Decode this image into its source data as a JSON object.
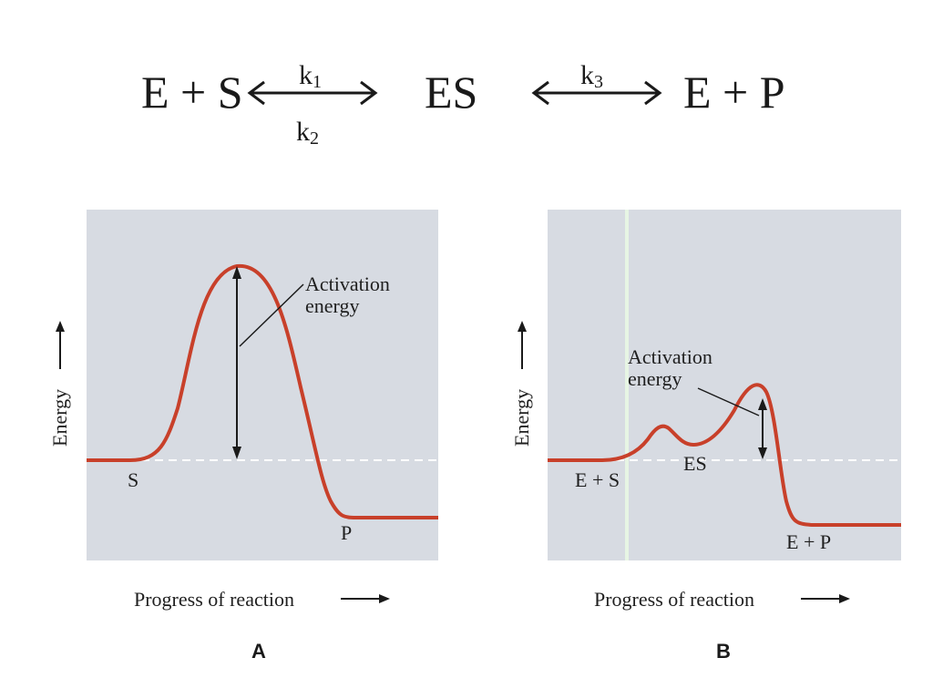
{
  "equation": {
    "left": "E + S",
    "middle": "ES",
    "right": "E + P",
    "rate_forward": {
      "symbol": "k",
      "subscript": "1"
    },
    "rate_reverse": {
      "symbol": "k",
      "subscript": "2"
    },
    "rate_catalytic": {
      "symbol": "k",
      "subscript": "3"
    }
  },
  "panel_a": {
    "letter": "A",
    "y_axis_label": "Energy",
    "x_axis_label": "Progress of reaction",
    "start_label": "S",
    "end_label": "P",
    "annotation_line1": "Activation",
    "annotation_line2": "energy"
  },
  "panel_b": {
    "letter": "B",
    "y_axis_label": "Energy",
    "x_axis_label": "Progress of reaction",
    "start_label": "E + S",
    "intermediate_label": "ES",
    "end_label": "E + P",
    "annotation_line1": "Activation",
    "annotation_line2": "energy"
  },
  "colors": {
    "curve": "#c8402a",
    "panel_background": "#d7dbe2",
    "dashed_baseline": "#ffffff",
    "text": "#1f1f1f"
  }
}
